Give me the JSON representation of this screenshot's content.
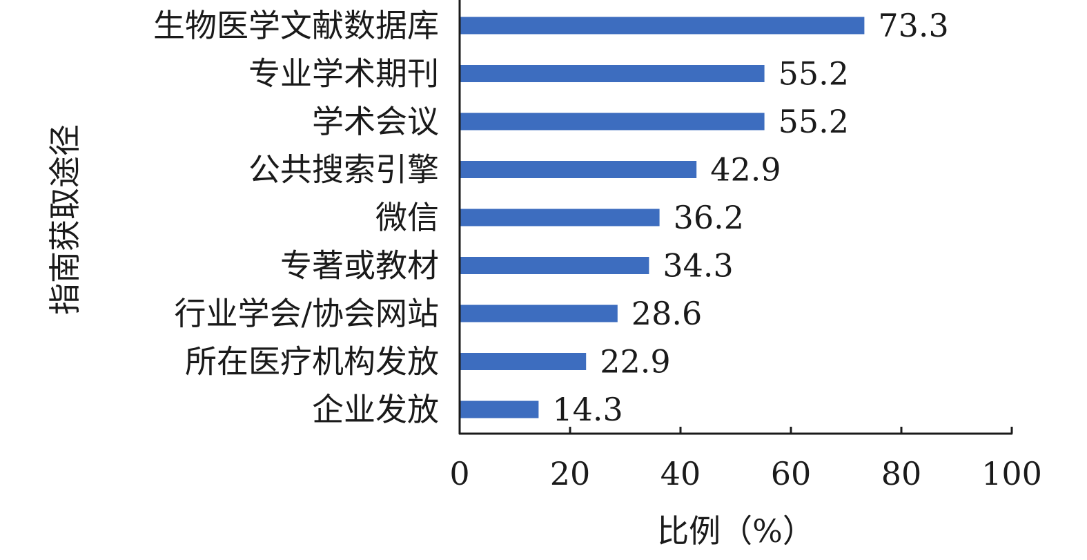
{
  "chart_data": {
    "type": "bar",
    "orientation": "horizontal",
    "categories": [
      "生物医学文献数据库",
      "专业学术期刊",
      "学术会议",
      "公共搜索引擎",
      "微信",
      "专著或教材",
      "行业学会/协会网站",
      "所在医疗机构发放",
      "企业发放"
    ],
    "values": [
      73.3,
      55.2,
      55.2,
      42.9,
      36.2,
      34.3,
      28.6,
      22.9,
      14.3
    ],
    "value_labels": [
      "73.3",
      "55.2",
      "55.2",
      "42.9",
      "36.2",
      "34.3",
      "28.6",
      "22.9",
      "14.3"
    ],
    "xticks": [
      "0",
      "20",
      "40",
      "60",
      "80",
      "100"
    ],
    "xlim": [
      0,
      100
    ],
    "xlabel": "比例（%）",
    "ylabel": "指南获取途径",
    "grid": false,
    "bar_color": "#3d6dbf"
  }
}
